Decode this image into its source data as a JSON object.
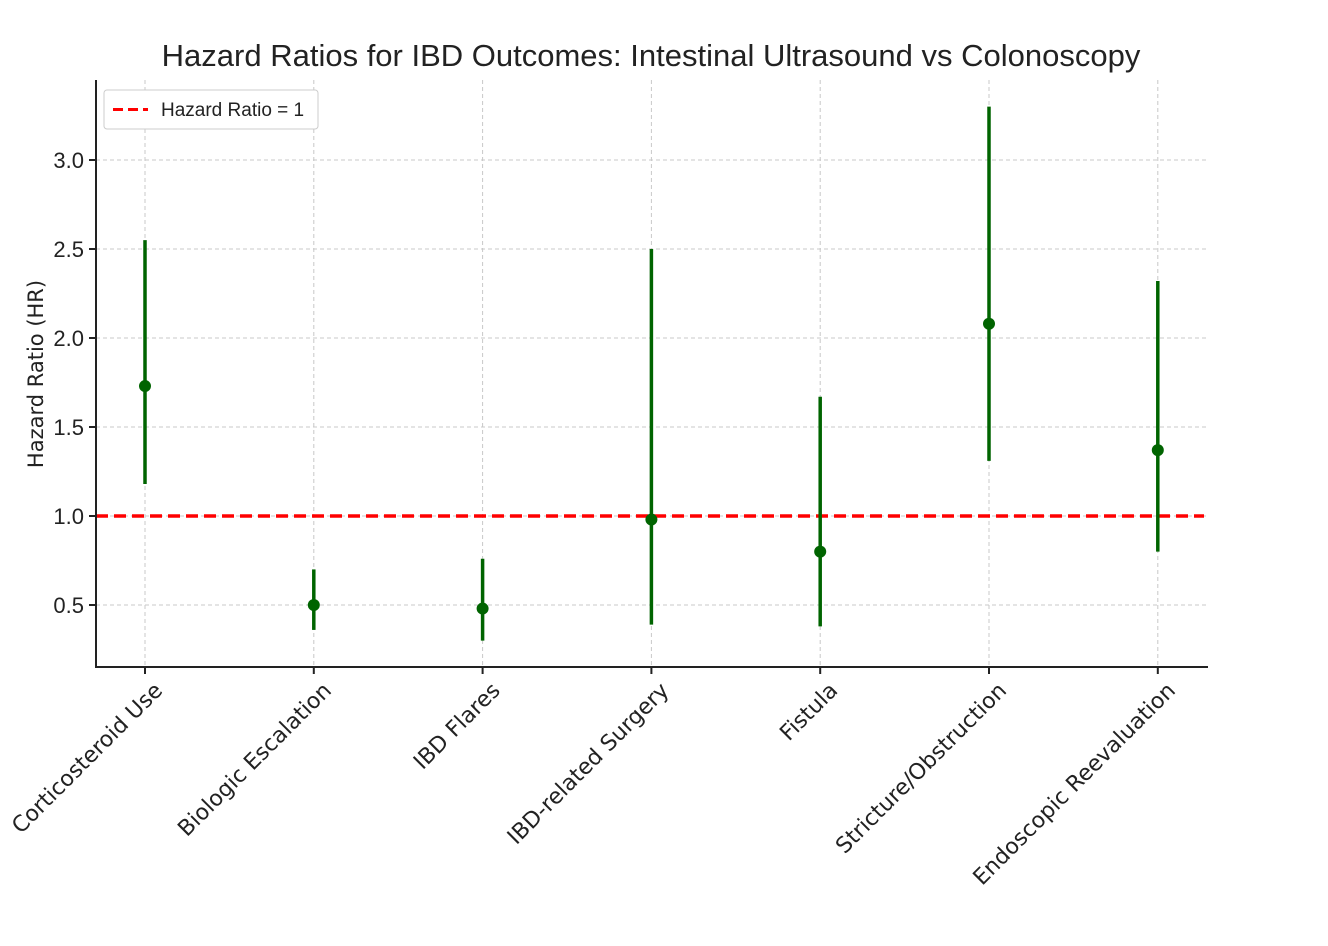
{
  "chart_data": {
    "type": "scatter",
    "title": "Hazard Ratios for IBD Outcomes: Intestinal Ultrasound vs Colonoscopy",
    "xlabel": "",
    "ylabel": "Hazard Ratio (HR)",
    "ylim": [
      0.15,
      3.45
    ],
    "yticks": [
      "0.5",
      "1.0",
      "1.5",
      "2.0",
      "2.5",
      "3.0"
    ],
    "grid": true,
    "legend_position": "top-left",
    "categories": [
      "Corticosteroid Use",
      "Biologic Escalation",
      "IBD Flares",
      "IBD-related Surgery",
      "Fistula",
      "Stricture/Obstruction",
      "Endoscopic Reevaluation"
    ],
    "series": [
      {
        "hr": [
          1.73,
          0.5,
          0.48,
          0.98,
          0.8,
          2.08,
          1.37
        ],
        "ci_lower": [
          1.18,
          0.36,
          0.3,
          0.39,
          0.38,
          1.31,
          0.8
        ],
        "ci_upper": [
          2.55,
          0.7,
          0.76,
          2.5,
          1.67,
          3.3,
          2.32
        ],
        "color": "#006400"
      }
    ],
    "reference_line": {
      "value": 1.0,
      "label": "Hazard Ratio = 1",
      "color": "#ff0000"
    }
  }
}
